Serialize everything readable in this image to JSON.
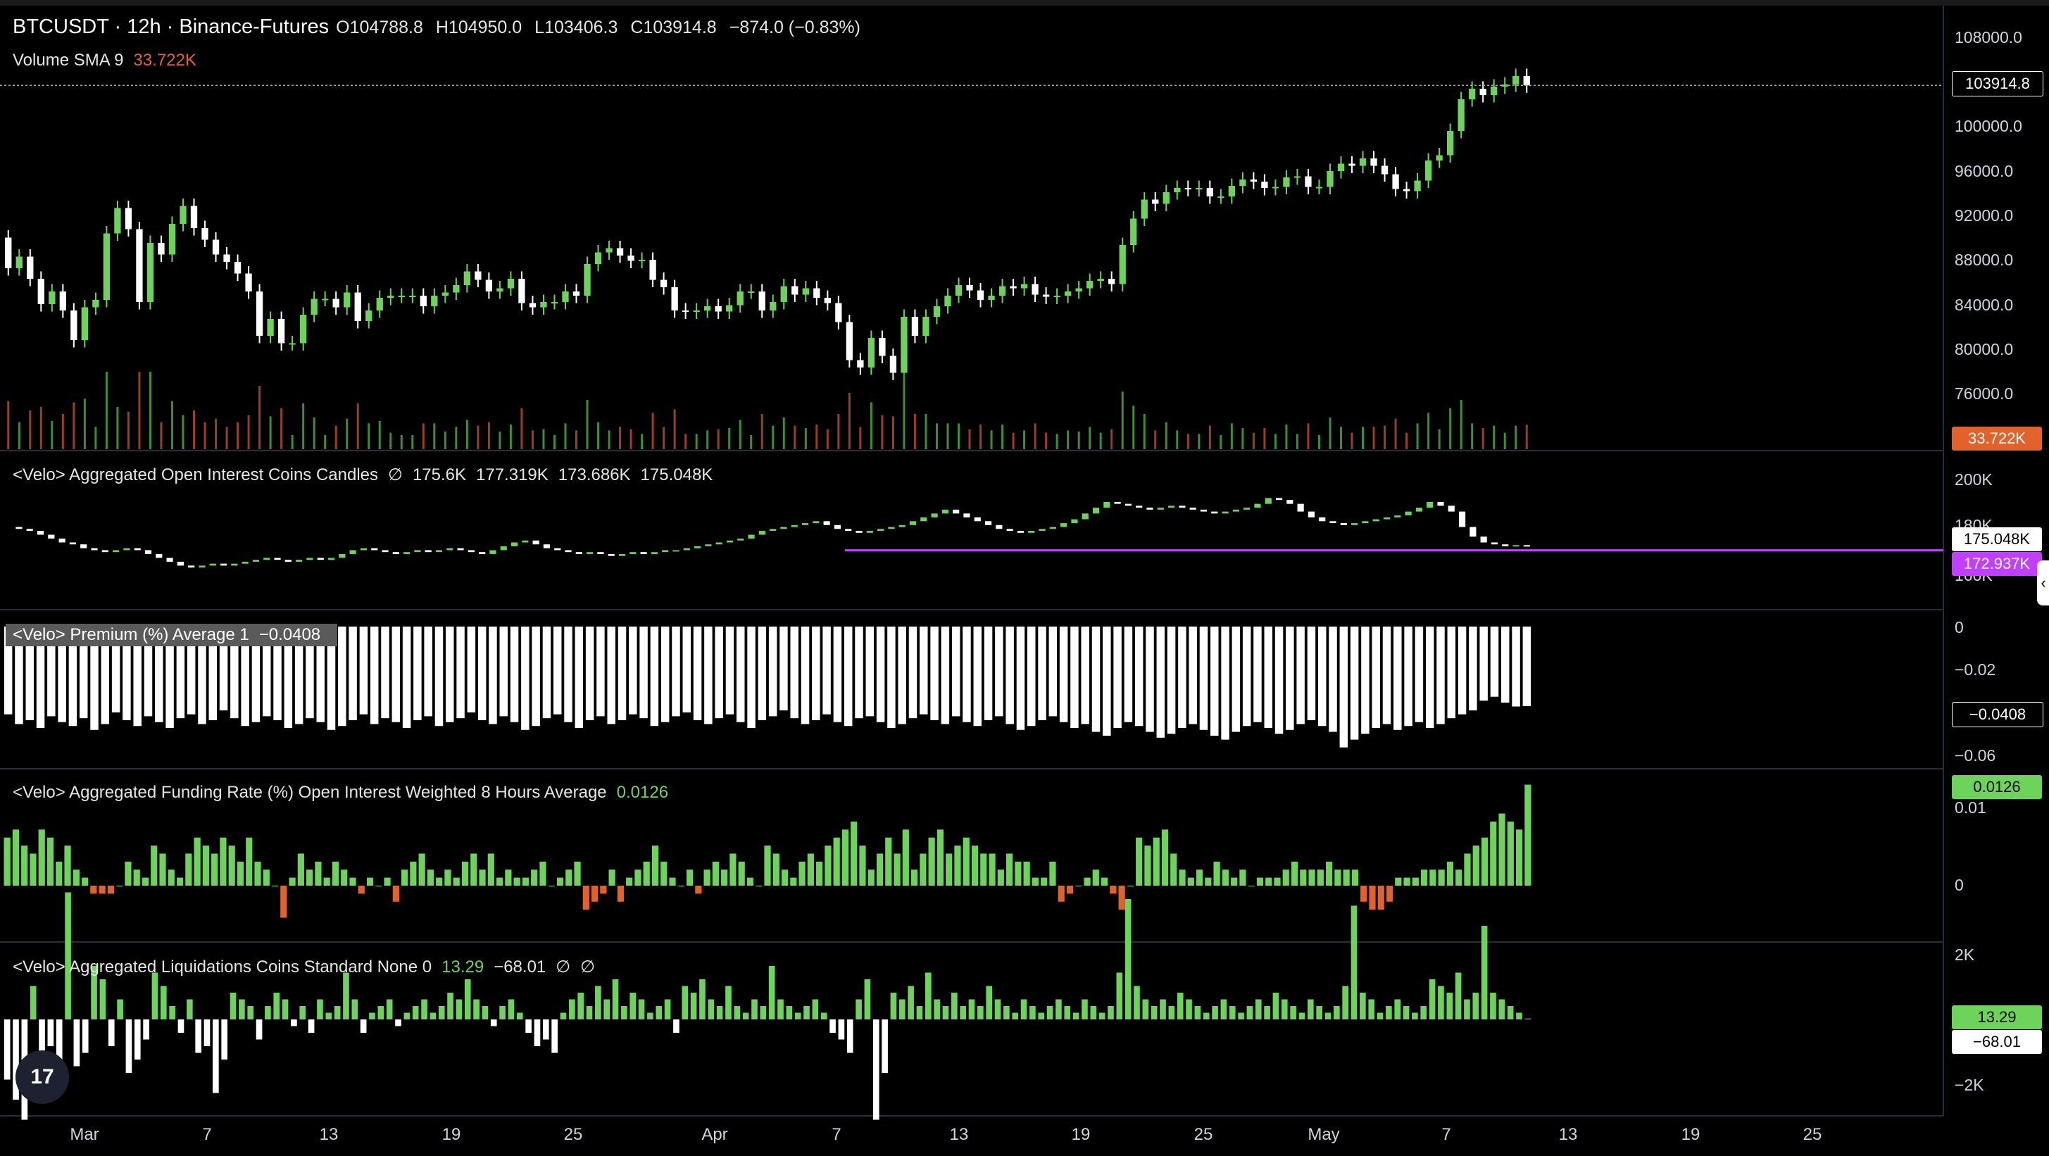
{
  "header": {
    "symbol": "BTCUSDT · 12h · Binance-Futures",
    "open": "O104788.8",
    "high": "H104950.0",
    "low": "L103406.3",
    "close": "C103914.8",
    "change": "−874.0 (−0.83%)"
  },
  "volume_legend": {
    "label": "Volume SMA 9",
    "value": "33.722K"
  },
  "oi_legend": {
    "label": "<Velo> Aggregated Open Interest Coins Candles",
    "glyph": "∅",
    "o": "175.6K",
    "h": "177.319K",
    "l": "173.686K",
    "c": "175.048K"
  },
  "premium_legend": {
    "label": "<Velo> Premium (%) Average 1",
    "value": "−0.0408"
  },
  "funding_legend": {
    "label": "<Velo> Aggregated Funding Rate (%) Open Interest Weighted 8 Hours Average",
    "value": "0.0126"
  },
  "liq_legend": {
    "label": "<Velo> Aggregated Liquidations Coins Standard None 0",
    "v1": "13.29",
    "v2": "−68.01",
    "g1": "∅",
    "g2": "∅"
  },
  "price_axis": [
    "108000.0",
    "100000.0",
    "96000.0",
    "92000.0",
    "88000.0",
    "84000.0",
    "80000.0",
    "76000.0"
  ],
  "oi_axis": [
    "200K",
    "180K",
    "160K"
  ],
  "premium_axis": [
    "0",
    "−0.02",
    "−0.06"
  ],
  "funding_axis": [
    "0.01",
    "0"
  ],
  "liq_axis": [
    "2K",
    "−2K"
  ],
  "price_labels": {
    "last_price": "103914.8",
    "volume_sma": "33.722K",
    "oi_last": "175.048K",
    "oi_line": "172.937K",
    "premium_last": "−0.0408",
    "funding_last": "0.0126",
    "liq_pos": "13.29",
    "liq_neg": "−68.01"
  },
  "dates": [
    "Mar",
    "7",
    "13",
    "19",
    "25",
    "Apr",
    "7",
    "13",
    "19",
    "25",
    "May",
    "7",
    "13",
    "19",
    "25"
  ],
  "logo": "17",
  "collapse_glyph": "‹",
  "colors": {
    "up": "#6ed35a",
    "down": "#ffffff",
    "bear_funding": "#e2622c",
    "line": "#c040ff",
    "panel_border": "#2a2e39"
  },
  "chart_data": {
    "type": "candlestick",
    "price": {
      "ylim": [
        72000,
        110000
      ],
      "open": [
        89500,
        86600,
        87700,
        85600,
        83200,
        84400,
        82600,
        79800,
        82900,
        83600,
        89900,
        92300,
        90300,
        83400,
        89000,
        87900,
        90800,
        92500,
        90400,
        89300,
        87900,
        87200,
        86100,
        84400,
        80200,
        81800,
        79500,
        79500,
        82200,
        83700,
        83700,
        82900,
        84300,
        81600,
        82600,
        83800,
        84000,
        84000,
        84000,
        83000,
        84000,
        84300,
        85000,
        86300,
        85500,
        84400,
        84700,
        85600,
        83300,
        82900,
        83400,
        83400,
        84400,
        84000,
        87000,
        88100,
        88500,
        87800,
        87300,
        87400,
        85500,
        84800,
        82600,
        82500,
        82600,
        83000,
        82500,
        83100,
        84400,
        84400,
        82600,
        83400,
        84900,
        84100,
        84700,
        83800,
        83300,
        81500,
        77900,
        77200,
        80000,
        78300,
        76700,
        82000,
        80200,
        82000,
        83000,
        84000,
        85000,
        84500,
        83600,
        84000,
        84900,
        84700,
        85100,
        84100,
        83900,
        84000,
        84400,
        84700,
        85400,
        85600,
        85100,
        88800,
        91300,
        93100,
        92700,
        93800,
        94200,
        94100,
        94200,
        93400,
        93400,
        94400,
        95000,
        94800,
        94200,
        94300,
        95200,
        95300,
        94300,
        94300,
        95800,
        96500,
        96300,
        97000,
        96300,
        95500,
        94100,
        93900,
        94900,
        96800,
        97300,
        99600,
        102600,
        103600,
        103000,
        103800,
        104000,
        104800
      ],
      "close": [
        86600,
        87700,
        85600,
        83200,
        84400,
        82600,
        79800,
        82900,
        83600,
        89900,
        92300,
        90300,
        83400,
        89000,
        87900,
        90800,
        92500,
        90400,
        89300,
        87900,
        87200,
        86100,
        84400,
        80200,
        81800,
        79500,
        79500,
        82200,
        83700,
        83700,
        82900,
        84300,
        81600,
        82600,
        83800,
        84000,
        84000,
        84000,
        83000,
        84000,
        84300,
        85000,
        86300,
        85500,
        84400,
        84700,
        85600,
        83300,
        82900,
        83400,
        83400,
        84400,
        84000,
        87000,
        88100,
        88500,
        87800,
        87300,
        87400,
        85500,
        84800,
        82600,
        82500,
        82600,
        83000,
        82500,
        83100,
        84400,
        84400,
        82600,
        83400,
        84900,
        84100,
        84700,
        83800,
        83300,
        81500,
        77900,
        77200,
        80000,
        78300,
        76700,
        82000,
        80200,
        82000,
        83000,
        84000,
        85000,
        84500,
        83600,
        84000,
        84900,
        84700,
        85100,
        84100,
        83900,
        84000,
        84400,
        84700,
        85400,
        85600,
        85100,
        88800,
        91300,
        93100,
        92700,
        93800,
        94200,
        94100,
        94200,
        93400,
        93400,
        94400,
        95000,
        94800,
        94200,
        94300,
        95200,
        95300,
        94300,
        94300,
        95800,
        96500,
        96300,
        97000,
        96300,
        95500,
        94100,
        93900,
        94900,
        96800,
        97300,
        99600,
        102600,
        103600,
        103000,
        103800,
        104000,
        104800,
        103914.8
      ]
    },
    "volume": {
      "sma_last": 33722
    },
    "open_interest": {
      "ylim": [
        148000,
        210000
      ],
      "values": [
        185,
        184,
        183,
        181,
        179,
        177,
        176,
        174,
        173,
        172,
        173,
        174,
        173,
        171,
        169,
        167,
        165,
        164,
        165,
        166,
        165,
        166,
        167,
        168,
        169,
        168,
        167,
        168,
        169,
        168,
        169,
        171,
        173,
        174,
        173,
        172,
        171,
        172,
        173,
        172,
        173,
        174,
        173,
        172,
        171,
        173,
        175,
        177,
        178,
        176,
        174,
        173,
        172,
        171,
        172,
        171,
        170,
        171,
        172,
        171,
        172,
        173,
        173,
        174,
        175,
        176,
        177,
        178,
        179,
        181,
        183,
        184,
        185,
        186,
        187,
        188,
        186,
        184,
        183,
        182,
        183,
        184,
        185,
        186,
        188,
        190,
        192,
        194,
        192,
        190,
        188,
        186,
        184,
        183,
        182,
        183,
        184,
        185,
        187,
        189,
        192,
        195,
        198,
        197,
        196,
        195,
        194,
        195,
        196,
        195,
        194,
        193,
        192,
        193,
        194,
        195,
        197,
        200,
        199,
        197,
        193,
        190,
        188,
        187,
        186,
        187,
        188,
        189,
        190,
        191,
        193,
        195,
        198,
        196,
        193,
        185,
        180,
        177,
        176,
        175,
        175.6,
        175.048
      ],
      "line": 172937,
      "last": 175048
    },
    "premium": {
      "ylim": [
        -0.07,
        0.005
      ],
      "values": [
        -0.045,
        -0.05,
        -0.048,
        -0.052,
        -0.046,
        -0.049,
        -0.051,
        -0.047,
        -0.053,
        -0.05,
        -0.044,
        -0.048,
        -0.051,
        -0.046,
        -0.049,
        -0.052,
        -0.047,
        -0.045,
        -0.05,
        -0.048,
        -0.043,
        -0.047,
        -0.051,
        -0.049,
        -0.046,
        -0.048,
        -0.052,
        -0.05,
        -0.047,
        -0.049,
        -0.053,
        -0.051,
        -0.048,
        -0.045,
        -0.05,
        -0.047,
        -0.049,
        -0.052,
        -0.048,
        -0.046,
        -0.051,
        -0.049,
        -0.047,
        -0.044,
        -0.048,
        -0.05,
        -0.046,
        -0.049,
        -0.053,
        -0.051,
        -0.047,
        -0.045,
        -0.049,
        -0.052,
        -0.048,
        -0.046,
        -0.05,
        -0.048,
        -0.045,
        -0.047,
        -0.051,
        -0.049,
        -0.046,
        -0.044,
        -0.048,
        -0.05,
        -0.047,
        -0.045,
        -0.049,
        -0.052,
        -0.048,
        -0.046,
        -0.043,
        -0.047,
        -0.05,
        -0.048,
        -0.045,
        -0.049,
        -0.051,
        -0.047,
        -0.046,
        -0.049,
        -0.052,
        -0.05,
        -0.047,
        -0.045,
        -0.048,
        -0.05,
        -0.046,
        -0.049,
        -0.051,
        -0.048,
        -0.046,
        -0.05,
        -0.053,
        -0.051,
        -0.048,
        -0.046,
        -0.049,
        -0.052,
        -0.05,
        -0.054,
        -0.056,
        -0.052,
        -0.049,
        -0.051,
        -0.054,
        -0.057,
        -0.055,
        -0.052,
        -0.05,
        -0.053,
        -0.056,
        -0.058,
        -0.054,
        -0.051,
        -0.049,
        -0.052,
        -0.055,
        -0.053,
        -0.05,
        -0.048,
        -0.051,
        -0.054,
        -0.062,
        -0.058,
        -0.055,
        -0.052,
        -0.05,
        -0.053,
        -0.051,
        -0.049,
        -0.052,
        -0.05,
        -0.047,
        -0.045,
        -0.043,
        -0.038,
        -0.036,
        -0.039,
        -0.041,
        -0.0408
      ]
    },
    "funding": {
      "ylim": [
        -0.007,
        0.013
      ],
      "values": [
        0.006,
        0.007,
        0.005,
        0.004,
        0.007,
        0.006,
        0.003,
        0.005,
        0.002,
        0.001,
        -0.001,
        -0.001,
        -0.001,
        0.0,
        0.003,
        0.002,
        0.001,
        0.005,
        0.004,
        0.002,
        0.001,
        0.004,
        0.006,
        0.005,
        0.004,
        0.006,
        0.005,
        0.003,
        0.006,
        0.003,
        0.002,
        0.0,
        -0.004,
        0.001,
        0.004,
        0.002,
        0.003,
        0.001,
        0.003,
        0.002,
        0.001,
        -0.001,
        0.001,
        0.0,
        0.001,
        -0.002,
        0.002,
        0.003,
        0.004,
        0.002,
        0.001,
        0.002,
        0.001,
        0.003,
        0.004,
        0.002,
        0.004,
        0.001,
        0.002,
        0.001,
        0.001,
        0.002,
        0.003,
        0.0,
        0.001,
        0.002,
        0.003,
        -0.003,
        -0.002,
        -0.001,
        0.002,
        -0.002,
        0.001,
        0.002,
        0.003,
        0.005,
        0.003,
        0.001,
        0.0,
        0.002,
        -0.001,
        0.002,
        0.003,
        0.002,
        0.004,
        0.003,
        0.001,
        0.0,
        0.005,
        0.004,
        0.002,
        0.001,
        0.003,
        0.004,
        0.003,
        0.005,
        0.006,
        0.007,
        0.008,
        0.005,
        0.002,
        0.004,
        0.006,
        0.004,
        0.007,
        0.002,
        0.004,
        0.006,
        0.007,
        0.004,
        0.005,
        0.006,
        0.005,
        0.004,
        0.004,
        0.002,
        0.004,
        0.003,
        0.003,
        0.001,
        0.001,
        0.003,
        -0.002,
        -0.001,
        0.0,
        0.001,
        0.002,
        0.001,
        -0.001,
        -0.003,
        0.0,
        0.006,
        0.005,
        0.006,
        0.007,
        0.004,
        0.002,
        0.001,
        0.002,
        0.001,
        0.003,
        0.002,
        0.001,
        0.002,
        0.0,
        0.001,
        0.001,
        0.001,
        0.002,
        0.003,
        0.002,
        0.002,
        0.002,
        0.003,
        0.002,
        0.002,
        0.002,
        -0.002,
        -0.003,
        -0.003,
        -0.002,
        0.001,
        0.001,
        0.001,
        0.002,
        0.002,
        0.002,
        0.003,
        0.002,
        0.004,
        0.005,
        0.006,
        0.008,
        0.009,
        0.008,
        0.007,
        0.0126
      ]
    },
    "liquidations": {
      "ylim": [
        -2800,
        2400
      ],
      "values": [
        -900,
        -1200,
        -1500,
        500,
        -600,
        -400,
        -1100,
        1900,
        -700,
        -500,
        800,
        600,
        -400,
        300,
        -800,
        -600,
        -300,
        700,
        500,
        200,
        -200,
        300,
        -500,
        -400,
        -1100,
        -600,
        400,
        300,
        200,
        -300,
        200,
        400,
        300,
        -100,
        200,
        -200,
        300,
        100,
        200,
        700,
        300,
        -200,
        100,
        200,
        300,
        -100,
        100,
        200,
        300,
        100,
        200,
        400,
        300,
        600,
        300,
        200,
        -100,
        200,
        300,
        100,
        -200,
        -400,
        -300,
        -500,
        100,
        300,
        400,
        200,
        500,
        300,
        600,
        200,
        400,
        300,
        100,
        200,
        300,
        -200,
        500,
        400,
        600,
        300,
        200,
        500,
        200,
        100,
        300,
        200,
        800,
        300,
        200,
        100,
        200,
        300,
        100,
        -200,
        -300,
        -500,
        300,
        600,
        -1500,
        -800,
        400,
        300,
        500,
        200,
        700,
        300,
        200,
        400,
        200,
        300,
        200,
        500,
        300,
        200,
        100,
        300,
        200,
        100,
        200,
        300,
        200,
        100,
        300,
        200,
        100,
        200,
        700,
        1800,
        500,
        300,
        200,
        300,
        200,
        400,
        300,
        200,
        100,
        200,
        300,
        200,
        100,
        200,
        300,
        200,
        400,
        300,
        200,
        100,
        300,
        200,
        100,
        200,
        500,
        1700,
        400,
        300,
        100,
        200,
        300,
        200,
        100,
        200,
        600,
        500,
        400,
        700,
        300,
        400,
        1400,
        400,
        300,
        200,
        100,
        13.29
      ]
    }
  }
}
